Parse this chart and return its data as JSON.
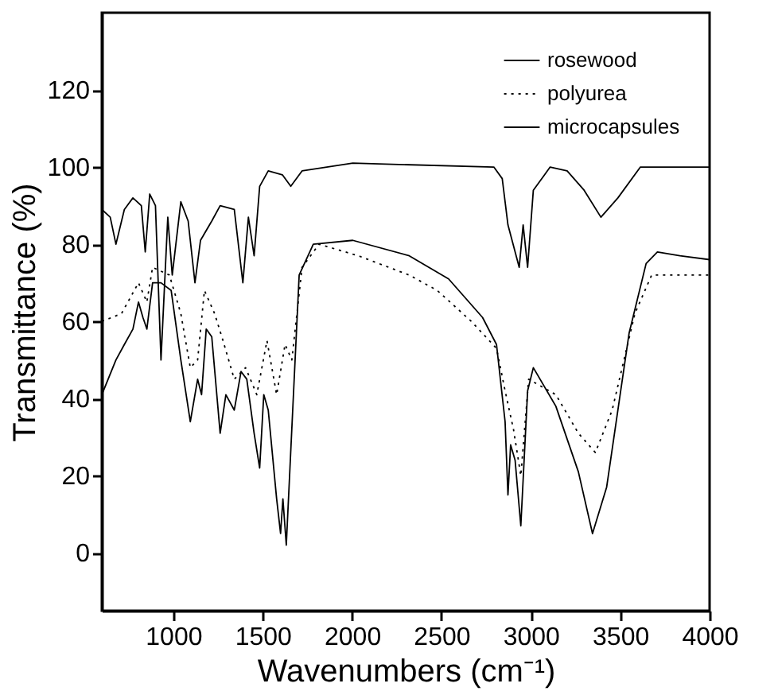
{
  "chart_data": {
    "type": "line",
    "xlabel": "Wavenumbers (cm⁻¹)",
    "ylabel": "Transmittance (%)",
    "xlim": [
      600,
      4000
    ],
    "xticks": [
      1000,
      1500,
      2000,
      2500,
      3000,
      3500,
      4000
    ],
    "ylim": [
      -15,
      140
    ],
    "yticks": [
      0,
      20,
      40,
      60,
      80,
      100,
      120
    ],
    "grid": false,
    "legend": "top right",
    "marker": "none",
    "series": [
      {
        "name": "rosewood",
        "color": "#000000",
        "line_style": "solid",
        "x": [
          600,
          647,
          679,
          726,
          774,
          821,
          843,
          868,
          900,
          931,
          969,
          994,
          1042,
          1083,
          1121,
          1152,
          1215,
          1262,
          1341,
          1389,
          1420,
          1452,
          1483,
          1531,
          1610,
          1657,
          1720,
          2004,
          2793,
          2840,
          2872,
          2935,
          2957,
          2982,
          3014,
          3077,
          3108,
          3203,
          3298,
          3392,
          3487,
          3613,
          4000
        ],
        "values": [
          89,
          87,
          80,
          89,
          92,
          90,
          78,
          93,
          90,
          50,
          87,
          72,
          91,
          86,
          70,
          81,
          86,
          90,
          89,
          70,
          87,
          77,
          95,
          99,
          98,
          95,
          99,
          101,
          100,
          97,
          85,
          74,
          85,
          74,
          94,
          98,
          100,
          99,
          94,
          87,
          92,
          100,
          100
        ]
      },
      {
        "name": "polyurea",
        "color": "#000000",
        "line_style": "dotted",
        "x": [
          600,
          710,
          805,
          852,
          884,
          978,
          1042,
          1095,
          1136,
          1174,
          1231,
          1278,
          1341,
          1404,
          1467,
          1524,
          1578,
          1625,
          1663,
          1720,
          1815,
          2035,
          2320,
          2477,
          2667,
          2808,
          2856,
          2903,
          2944,
          2988,
          3140,
          3266,
          3361,
          3455,
          3582,
          3676,
          3803,
          4000
        ],
        "values": [
          60,
          62,
          70,
          65,
          74,
          72,
          62,
          48,
          50,
          68,
          62,
          55,
          45,
          48,
          41,
          55,
          41,
          54,
          50,
          74,
          80,
          77,
          72,
          68,
          60,
          53,
          42,
          32,
          20,
          45,
          41,
          31,
          26,
          37,
          62,
          72,
          72,
          72
        ]
      },
      {
        "name": "microcapsules",
        "color": "#000000",
        "line_style": "solid",
        "x": [
          600,
          679,
          726,
          774,
          805,
          830,
          852,
          884,
          931,
          988,
          1042,
          1095,
          1136,
          1158,
          1184,
          1215,
          1262,
          1294,
          1341,
          1379,
          1411,
          1452,
          1483,
          1506,
          1531,
          1578,
          1600,
          1613,
          1632,
          1673,
          1704,
          1783,
          2004,
          2320,
          2540,
          2730,
          2808,
          2856,
          2872,
          2887,
          2912,
          2944,
          2982,
          3014,
          3140,
          3266,
          3345,
          3424,
          3550,
          3645,
          3708,
          3834,
          4000
        ],
        "values": [
          41,
          50,
          54,
          58,
          65,
          61,
          58,
          70,
          70,
          68,
          50,
          34,
          45,
          41,
          58,
          56,
          31,
          41,
          37,
          47,
          45,
          31,
          22,
          41,
          37,
          14,
          5,
          14,
          2,
          42,
          72,
          80,
          81,
          77,
          71,
          61,
          54,
          34,
          15,
          28,
          24,
          7,
          42,
          48,
          38,
          21,
          5,
          17,
          57,
          75,
          78,
          77,
          76
        ]
      }
    ]
  }
}
